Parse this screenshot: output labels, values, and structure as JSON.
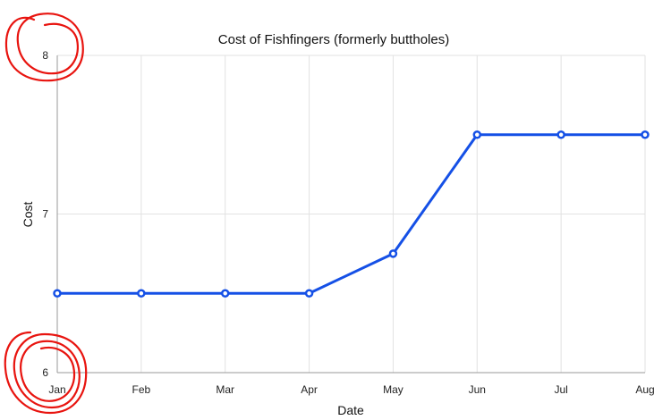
{
  "chart_data": {
    "type": "line",
    "title": "Cost of Fishfingers (formerly buttholes)",
    "xlabel": "Date",
    "ylabel": "Cost",
    "categories": [
      "Jan",
      "Feb",
      "Mar",
      "Apr",
      "May",
      "Jun",
      "Jul",
      "Aug"
    ],
    "series": [
      {
        "values": [
          6.5,
          6.5,
          6.5,
          6.5,
          6.75,
          7.5,
          7.5,
          7.5
        ]
      }
    ],
    "ylim": [
      6,
      8
    ],
    "yticks": [
      6,
      7,
      8
    ],
    "grid": true,
    "legend": "none"
  },
  "colors": {
    "series": "#1550e6",
    "annotation": "#e8140f"
  },
  "annotations": [
    {
      "kind": "hand-drawn-circle",
      "around_tick": "8"
    },
    {
      "kind": "hand-drawn-circle",
      "around_tick": "6"
    }
  ]
}
